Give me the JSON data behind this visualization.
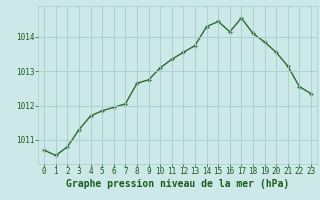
{
  "x": [
    0,
    1,
    2,
    3,
    4,
    5,
    6,
    7,
    8,
    9,
    10,
    11,
    12,
    13,
    14,
    15,
    16,
    17,
    18,
    19,
    20,
    21,
    22,
    23
  ],
  "y": [
    1010.7,
    1010.55,
    1010.8,
    1011.3,
    1011.7,
    1011.85,
    1011.95,
    1012.05,
    1012.65,
    1012.75,
    1013.1,
    1013.35,
    1013.55,
    1013.75,
    1014.3,
    1014.45,
    1014.15,
    1014.55,
    1014.1,
    1013.85,
    1013.55,
    1013.15,
    1012.55,
    1012.35
  ],
  "line_color": "#2d6a2d",
  "marker": "+",
  "marker_size": 3.5,
  "line_width": 1.0,
  "bg_color": "#cce8e8",
  "grid_color": "#a8cccc",
  "xlabel": "Graphe pression niveau de la mer (hPa)",
  "xlabel_color": "#1a5c1a",
  "xlabel_fontsize": 7,
  "tick_color": "#1a5c1a",
  "tick_fontsize": 5.5,
  "ylim": [
    1010.3,
    1014.9
  ],
  "yticks": [
    1011,
    1012,
    1013,
    1014
  ],
  "xlim": [
    -0.5,
    23.5
  ],
  "xticks": [
    0,
    1,
    2,
    3,
    4,
    5,
    6,
    7,
    8,
    9,
    10,
    11,
    12,
    13,
    14,
    15,
    16,
    17,
    18,
    19,
    20,
    21,
    22,
    23
  ]
}
